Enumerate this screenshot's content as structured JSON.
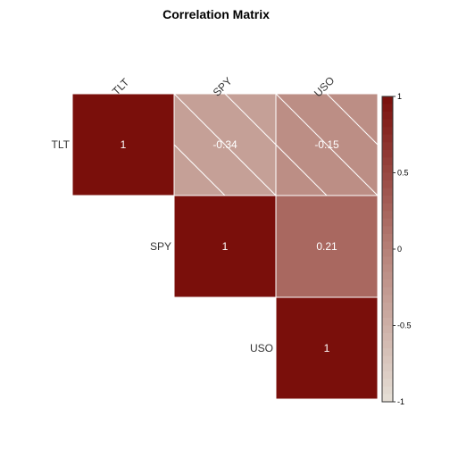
{
  "chart_data": {
    "type": "heatmap",
    "title": "Correlation Matrix",
    "variables": [
      "TLT",
      "SPY",
      "USO"
    ],
    "matrix": [
      [
        1,
        -0.34,
        -0.15
      ],
      [
        -0.34,
        1,
        0.21
      ],
      [
        -0.15,
        0.21,
        1
      ]
    ],
    "display": "upper-triangle",
    "value_labels": [
      [
        "1",
        "-0.34",
        "-0.15"
      ],
      [
        "",
        "1",
        "0.21"
      ],
      [
        "",
        "",
        "1"
      ]
    ],
    "negative_hatched": true,
    "colorbar": {
      "range": [
        -1,
        1
      ],
      "ticks": [
        "1",
        "0.5",
        "0",
        "-0.5",
        "-1"
      ],
      "tick_values": [
        1,
        0.5,
        0,
        -0.5,
        -1
      ],
      "placement": "right"
    },
    "colors": {
      "strong_positive": "#7a0f0b",
      "zero": "#b58077",
      "strong_negative": "#e5dfd6",
      "grid_line": "#ffffff",
      "hatch": "#ffffff"
    }
  }
}
